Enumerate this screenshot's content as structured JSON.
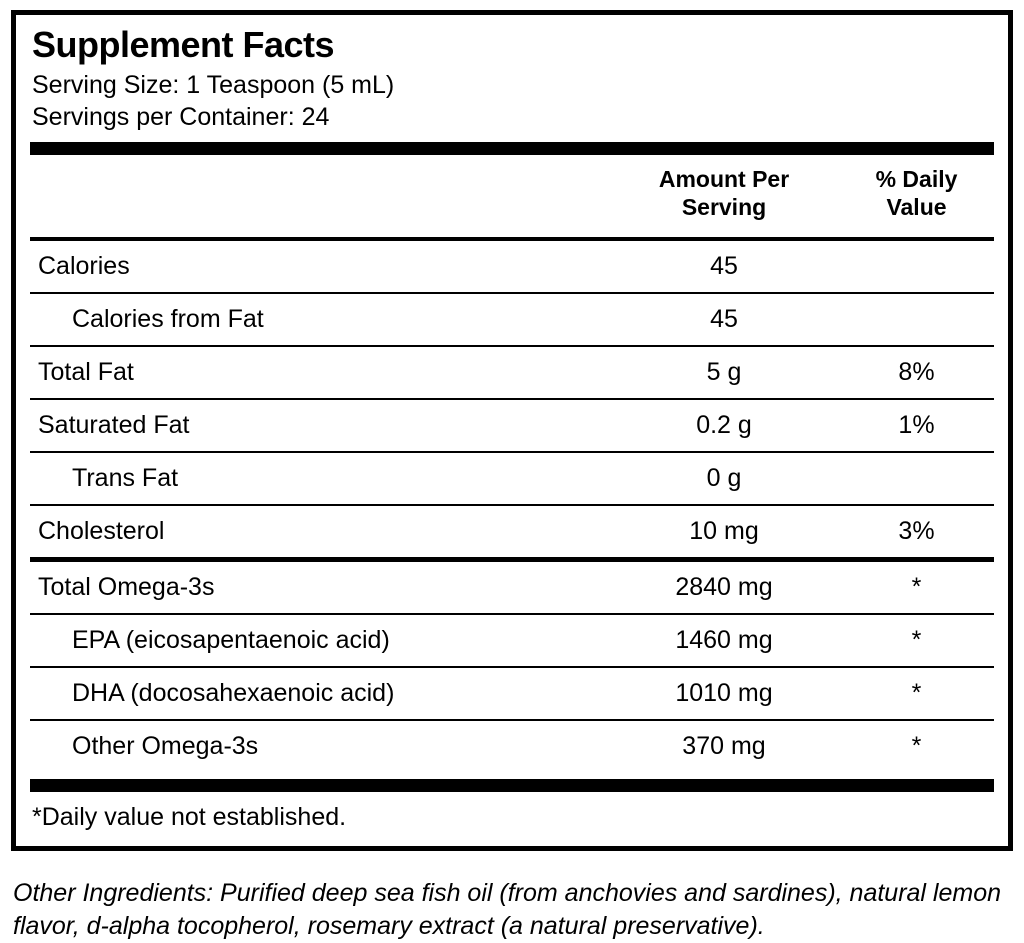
{
  "panel": {
    "title": "Supplement Facts",
    "serving_size": "Serving Size: 1 Teaspoon (5 mL)",
    "servings_per_container": "Servings per Container: 24",
    "col_amount_header": "Amount Per Serving",
    "col_dv_header": "% Daily Value",
    "footnote": "*Daily value not established."
  },
  "table": {
    "rows": [
      {
        "name": "Calories",
        "amount": "45",
        "dv": ""
      },
      {
        "name": "Calories from Fat",
        "amount": "45",
        "dv": ""
      },
      {
        "name": "Total Fat",
        "amount": "5 g",
        "dv": "8%"
      },
      {
        "name": "Saturated Fat",
        "amount": "0.2 g",
        "dv": "1%"
      },
      {
        "name": "Trans Fat",
        "amount": "0 g",
        "dv": ""
      },
      {
        "name": "Cholesterol",
        "amount": "10 mg",
        "dv": "3%"
      },
      {
        "name": "Total Omega-3s",
        "amount": "2840 mg",
        "dv": "*"
      },
      {
        "name": "EPA (eicosapentaenoic acid)",
        "amount": "1460 mg",
        "dv": "*"
      },
      {
        "name": "DHA (docosahexaenoic acid)",
        "amount": "1010 mg",
        "dv": "*"
      },
      {
        "name": "Other Omega-3s",
        "amount": "370 mg",
        "dv": "*"
      }
    ]
  },
  "other_ingredients": "Other Ingredients: Purified deep sea fish oil (from anchovies and sardines), natural lemon flavor, d-alpha tocopherol, rosemary extract (a natural preservative)."
}
